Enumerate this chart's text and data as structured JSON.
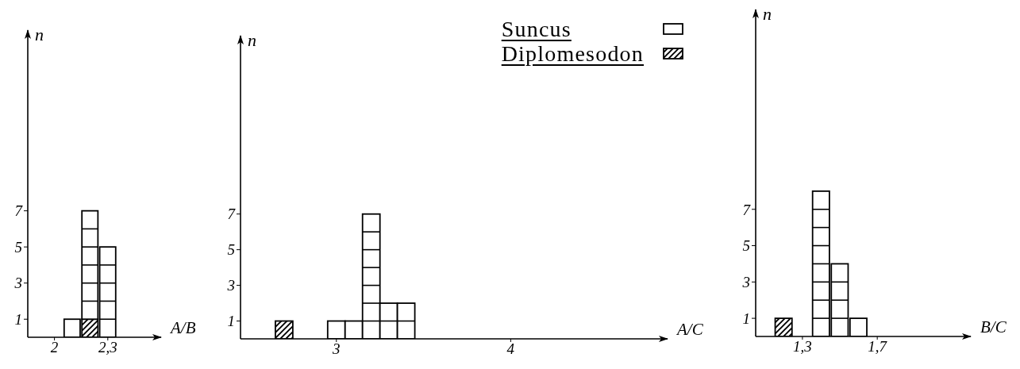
{
  "chart_data": [
    {
      "type": "bar",
      "xlabel": "A/B",
      "ylabel": "n",
      "stacked": true,
      "x": [
        2.1,
        2.2,
        2.3
      ],
      "series": [
        {
          "color": "#000000",
          "values": [
            null,
            1,
            null
          ]
        },
        {
          "color": "#000000",
          "values": [
            1,
            6,
            5
          ]
        }
      ],
      "xlim": [
        1.85,
        2.6
      ],
      "xticks": [
        2,
        {
          "value": 2.3,
          "label": "2,3"
        }
      ],
      "ylim": [
        0,
        17
      ],
      "yticks": [
        1,
        3,
        5,
        7
      ]
    },
    {
      "type": "bar",
      "xlabel": "A/C",
      "ylabel": "n",
      "stacked": true,
      "x": [
        2.7,
        3.0,
        3.1,
        3.2,
        3.3,
        3.4
      ],
      "series": [
        {
          "name": "Diplomesodon",
          "color": "#000000",
          "values": [
            1,
            null,
            null,
            null,
            null,
            null
          ]
        },
        {
          "name": "Suncus",
          "color": "#000000",
          "values": [
            null,
            1,
            1,
            7,
            2,
            2
          ]
        }
      ],
      "xlim": [
        2.45,
        4.9
      ],
      "xticks": [
        3,
        4
      ],
      "ylim": [
        0,
        17
      ],
      "yticks": [
        1,
        3,
        5,
        7
      ],
      "legend": "top right"
    },
    {
      "type": "bar",
      "xlabel": "B/C",
      "ylabel": "n",
      "stacked": true,
      "x": [
        1.2,
        1.4,
        1.5,
        1.6
      ],
      "series": [
        {
          "color": "#000000",
          "values": [
            1,
            null,
            null,
            null
          ]
        },
        {
          "color": "#000000",
          "values": [
            null,
            8,
            4,
            1
          ]
        }
      ],
      "xlim": [
        1.05,
        2.2
      ],
      "xticks": [
        {
          "value": 1.3,
          "label": "1,3"
        },
        {
          "value": 1.7,
          "label": "1,7"
        }
      ],
      "ylim": [
        0,
        18
      ],
      "yticks": [
        1,
        3,
        5,
        7
      ]
    }
  ]
}
